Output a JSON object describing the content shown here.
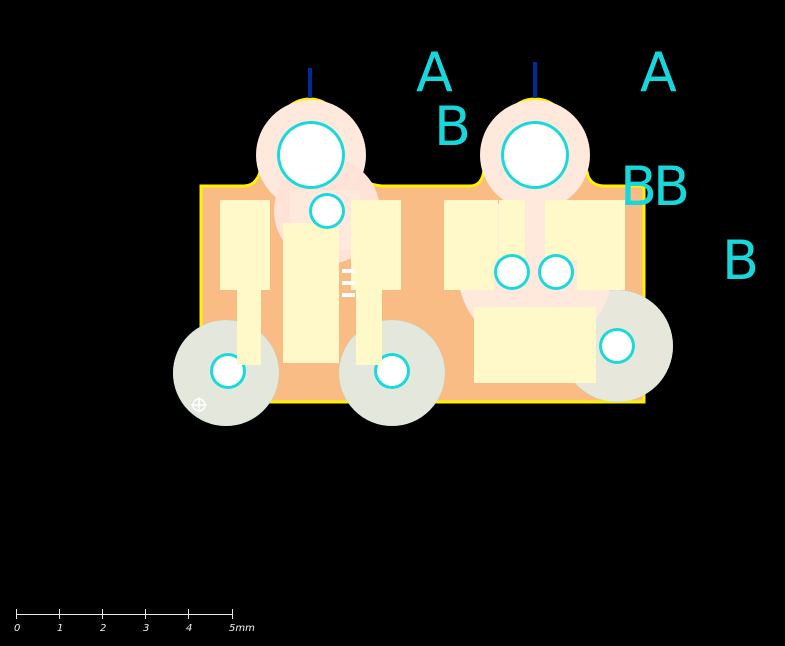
{
  "canvas": {
    "background": "#000000",
    "board_fill": "#f8bc84",
    "board_outline": "#fff200",
    "pad_fill": "#fff8c8",
    "soft_pad": "#ffe8dc",
    "via_cyan": "#19d9dc",
    "blue_stub": "#002b9a"
  },
  "labels": {
    "a_left": "A",
    "b_left": "B",
    "a_right": "A",
    "bb_right": "BB",
    "b_far_right": "B"
  },
  "scale": {
    "ticks": [
      "0",
      "1",
      "2",
      "3",
      "4",
      "5mm"
    ]
  },
  "icons": {
    "origin_marker": "crosshair-icon"
  }
}
